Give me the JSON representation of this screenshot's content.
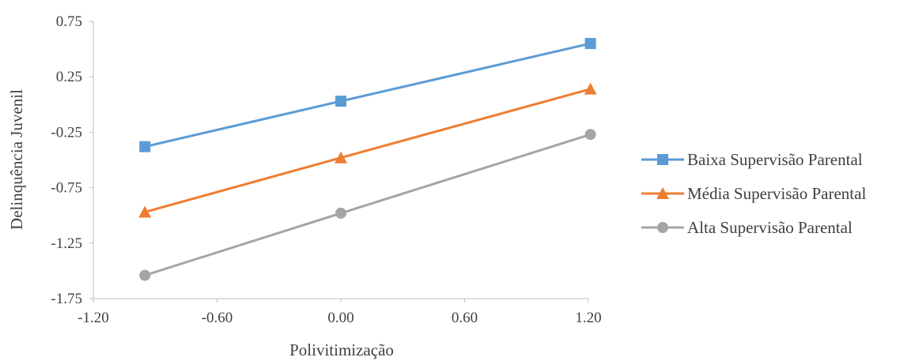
{
  "chart_data": {
    "type": "line",
    "title": "",
    "xlabel": "Polivitimização",
    "ylabel": "Delinquência Juvenil",
    "xlim": [
      -1.2,
      1.2
    ],
    "ylim": [
      -1.75,
      0.75
    ],
    "x_ticks": [
      "-1.20",
      "-0.60",
      "0.00",
      "0.60",
      "1.20"
    ],
    "x_tick_values": [
      -1.2,
      -0.6,
      0.0,
      0.6,
      1.2
    ],
    "y_ticks": [
      "0.75",
      "0.25",
      "-0.25",
      "-0.75",
      "-1.25",
      "-1.75"
    ],
    "y_tick_values": [
      0.75,
      0.25,
      -0.25,
      -0.75,
      -1.25,
      -1.75
    ],
    "grid": false,
    "legend_position": "right",
    "x": [
      -0.95,
      0.0,
      1.21
    ],
    "series": [
      {
        "name": "Baixa Supervisão Parental",
        "values": [
          -0.38,
          0.03,
          0.55
        ],
        "color": "#5B9BD5",
        "marker": "square"
      },
      {
        "name": "Média Supervisão Parental",
        "values": [
          -0.97,
          -0.48,
          0.14
        ],
        "color": "#ED7D31",
        "marker": "triangle"
      },
      {
        "name": "Alta Supervisão Parental",
        "values": [
          -1.54,
          -0.98,
          -0.27
        ],
        "color": "#A5A5A5",
        "marker": "circle"
      }
    ]
  }
}
